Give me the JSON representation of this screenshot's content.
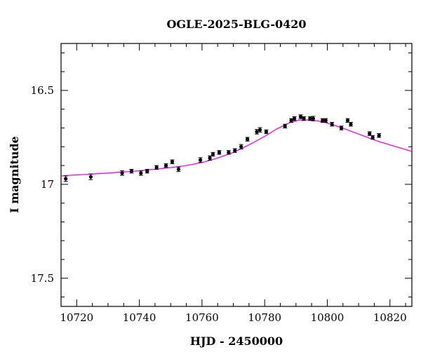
{
  "chart_data": {
    "type": "scatter",
    "title": "OGLE-2025-BLG-0420",
    "xlabel": "HJD - 2450000",
    "ylabel": "I magnitude",
    "xlim": [
      10715,
      10827
    ],
    "ylim": [
      17.65,
      16.25
    ],
    "y_inverted": true,
    "xticks": [
      10720,
      10740,
      10760,
      10780,
      10800,
      10820
    ],
    "yticks": [
      16.5,
      17,
      17.5
    ],
    "ytick_labels": [
      "16.5",
      "17",
      "17.5"
    ],
    "grid": false,
    "points": [
      {
        "x": 10716.5,
        "y": 16.97,
        "err": 0.015
      },
      {
        "x": 10724.5,
        "y": 16.96,
        "err": 0.015
      },
      {
        "x": 10734.5,
        "y": 16.94,
        "err": 0.012
      },
      {
        "x": 10737.5,
        "y": 16.93,
        "err": 0.01
      },
      {
        "x": 10740.5,
        "y": 16.94,
        "err": 0.012
      },
      {
        "x": 10742.5,
        "y": 16.93,
        "err": 0.01
      },
      {
        "x": 10745.5,
        "y": 16.91,
        "err": 0.01
      },
      {
        "x": 10748.5,
        "y": 16.9,
        "err": 0.01
      },
      {
        "x": 10750.5,
        "y": 16.88,
        "err": 0.01
      },
      {
        "x": 10752.5,
        "y": 16.92,
        "err": 0.012
      },
      {
        "x": 10759.5,
        "y": 16.87,
        "err": 0.012
      },
      {
        "x": 10762.5,
        "y": 16.86,
        "err": 0.012
      },
      {
        "x": 10763.5,
        "y": 16.84,
        "err": 0.01
      },
      {
        "x": 10765.5,
        "y": 16.83,
        "err": 0.01
      },
      {
        "x": 10768.5,
        "y": 16.83,
        "err": 0.01
      },
      {
        "x": 10770.5,
        "y": 16.82,
        "err": 0.01
      },
      {
        "x": 10772.5,
        "y": 16.8,
        "err": 0.012
      },
      {
        "x": 10774.5,
        "y": 16.76,
        "err": 0.01
      },
      {
        "x": 10777.5,
        "y": 16.72,
        "err": 0.012
      },
      {
        "x": 10778.5,
        "y": 16.71,
        "err": 0.012
      },
      {
        "x": 10780.5,
        "y": 16.72,
        "err": 0.01
      },
      {
        "x": 10786.5,
        "y": 16.69,
        "err": 0.01
      },
      {
        "x": 10788.5,
        "y": 16.66,
        "err": 0.01
      },
      {
        "x": 10789.5,
        "y": 16.65,
        "err": 0.01
      },
      {
        "x": 10791.5,
        "y": 16.64,
        "err": 0.01
      },
      {
        "x": 10792.5,
        "y": 16.65,
        "err": 0.01
      },
      {
        "x": 10794.5,
        "y": 16.65,
        "err": 0.01
      },
      {
        "x": 10795.5,
        "y": 16.65,
        "err": 0.012
      },
      {
        "x": 10798.5,
        "y": 16.66,
        "err": 0.01
      },
      {
        "x": 10799.5,
        "y": 16.66,
        "err": 0.01
      },
      {
        "x": 10801.5,
        "y": 16.68,
        "err": 0.01
      },
      {
        "x": 10804.5,
        "y": 16.7,
        "err": 0.01
      },
      {
        "x": 10806.5,
        "y": 16.66,
        "err": 0.01
      },
      {
        "x": 10807.5,
        "y": 16.68,
        "err": 0.01
      },
      {
        "x": 10813.5,
        "y": 16.73,
        "err": 0.01
      },
      {
        "x": 10814.5,
        "y": 16.75,
        "err": 0.01
      },
      {
        "x": 10816.5,
        "y": 16.74,
        "err": 0.01
      }
    ],
    "model_curve": {
      "color": "#ff00ff",
      "x": [
        10715,
        10720,
        10730,
        10740,
        10750,
        10755,
        10760,
        10765,
        10770,
        10775,
        10780,
        10784,
        10788,
        10791,
        10794,
        10797,
        10800,
        10804,
        10808,
        10812,
        10816,
        10820,
        10824,
        10827
      ],
      "y": [
        16.955,
        16.95,
        16.94,
        16.928,
        16.911,
        16.9,
        16.884,
        16.86,
        16.83,
        16.79,
        16.745,
        16.704,
        16.672,
        16.658,
        16.657,
        16.662,
        16.674,
        16.695,
        16.72,
        16.745,
        16.77,
        16.79,
        16.81,
        16.825
      ]
    },
    "point_color": "#000000"
  }
}
